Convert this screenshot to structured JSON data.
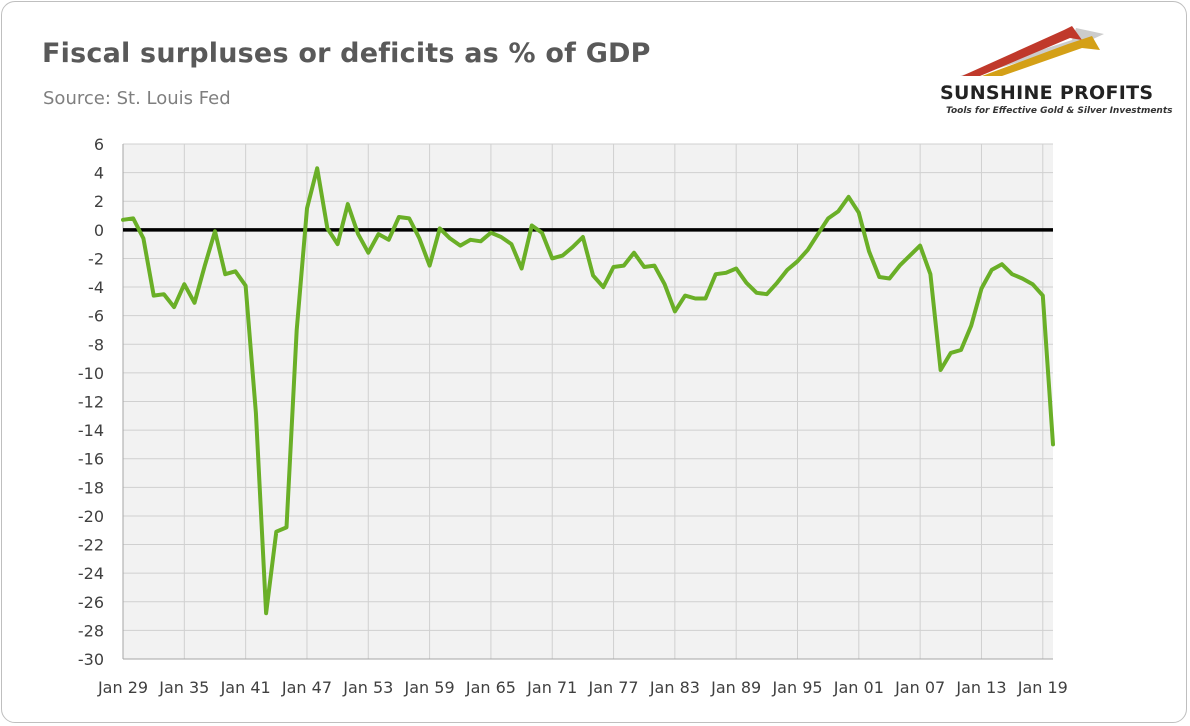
{
  "header": {
    "title": "Fiscal surpluses or deficits as % of GDP",
    "subtitle": "Source: St. Louis Fed"
  },
  "logo": {
    "name": "SUNSHINE PROFITS",
    "tagline": "Tools for Effective Gold & Silver Investments",
    "colors": {
      "red": "#c0392b",
      "gold": "#d4a017",
      "gray": "#bfbfbf"
    }
  },
  "chart_data": {
    "type": "line",
    "title": "Fiscal surpluses or deficits as % of GDP",
    "subtitle": "Source: St. Louis Fed",
    "xlabel": "",
    "ylabel": "",
    "xlim": [
      1929,
      2020
    ],
    "ylim": [
      -30,
      6
    ],
    "yticks": [
      6,
      4,
      2,
      0,
      -2,
      -4,
      -6,
      -8,
      -10,
      -12,
      -14,
      -16,
      -18,
      -20,
      -22,
      -24,
      -26,
      -28,
      -30
    ],
    "xtick_labels": [
      "Jan 29",
      "Jan 35",
      "Jan 41",
      "Jan 47",
      "Jan 53",
      "Jan 59",
      "Jan 65",
      "Jan 71",
      "Jan 77",
      "Jan 83",
      "Jan 89",
      "Jan 95",
      "Jan 01",
      "Jan 07",
      "Jan 13",
      "Jan 19"
    ],
    "xtick_years": [
      1929,
      1935,
      1941,
      1947,
      1953,
      1959,
      1965,
      1971,
      1977,
      1983,
      1989,
      1995,
      2001,
      2007,
      2013,
      2019
    ],
    "grid": true,
    "zero_line": true,
    "series": [
      {
        "color": "#6aaf27",
        "x": [
          1929,
          1930,
          1931,
          1932,
          1933,
          1934,
          1935,
          1936,
          1937,
          1938,
          1939,
          1940,
          1941,
          1942,
          1943,
          1944,
          1945,
          1946,
          1947,
          1948,
          1949,
          1950,
          1951,
          1952,
          1953,
          1954,
          1955,
          1956,
          1957,
          1958,
          1959,
          1960,
          1961,
          1962,
          1963,
          1964,
          1965,
          1966,
          1967,
          1968,
          1969,
          1970,
          1971,
          1972,
          1973,
          1974,
          1975,
          1976,
          1977,
          1978,
          1979,
          1980,
          1981,
          1982,
          1983,
          1984,
          1985,
          1986,
          1987,
          1988,
          1989,
          1990,
          1991,
          1992,
          1993,
          1994,
          1995,
          1996,
          1997,
          1998,
          1999,
          2000,
          2001,
          2002,
          2003,
          2004,
          2005,
          2006,
          2007,
          2008,
          2009,
          2010,
          2011,
          2012,
          2013,
          2014,
          2015,
          2016,
          2017,
          2018,
          2019,
          2020
        ],
        "values": [
          0.7,
          0.8,
          -0.6,
          -4.6,
          -4.5,
          -5.4,
          -3.8,
          -5.1,
          -2.5,
          -0.1,
          -3.1,
          -2.9,
          -3.9,
          -12.8,
          -26.8,
          -21.1,
          -20.8,
          -7.0,
          1.5,
          4.3,
          0.1,
          -1.0,
          1.8,
          -0.3,
          -1.6,
          -0.3,
          -0.7,
          0.9,
          0.8,
          -0.6,
          -2.5,
          0.1,
          -0.6,
          -1.1,
          -0.7,
          -0.8,
          -0.2,
          -0.5,
          -1.0,
          -2.7,
          0.3,
          -0.2,
          -2.0,
          -1.8,
          -1.2,
          -0.5,
          -3.2,
          -4.0,
          -2.6,
          -2.5,
          -1.6,
          -2.6,
          -2.5,
          -3.8,
          -5.7,
          -4.6,
          -4.8,
          -4.8,
          -3.1,
          -3.0,
          -2.7,
          -3.7,
          -4.4,
          -4.5,
          -3.7,
          -2.8,
          -2.2,
          -1.4,
          -0.3,
          0.8,
          1.3,
          2.3,
          1.2,
          -1.5,
          -3.3,
          -3.4,
          -2.5,
          -1.8,
          -1.1,
          -3.1,
          -9.8,
          -8.6,
          -8.4,
          -6.7,
          -4.1,
          -2.8,
          -2.4,
          -3.1,
          -3.4,
          -3.8,
          -4.6,
          -15.0
        ]
      }
    ]
  }
}
